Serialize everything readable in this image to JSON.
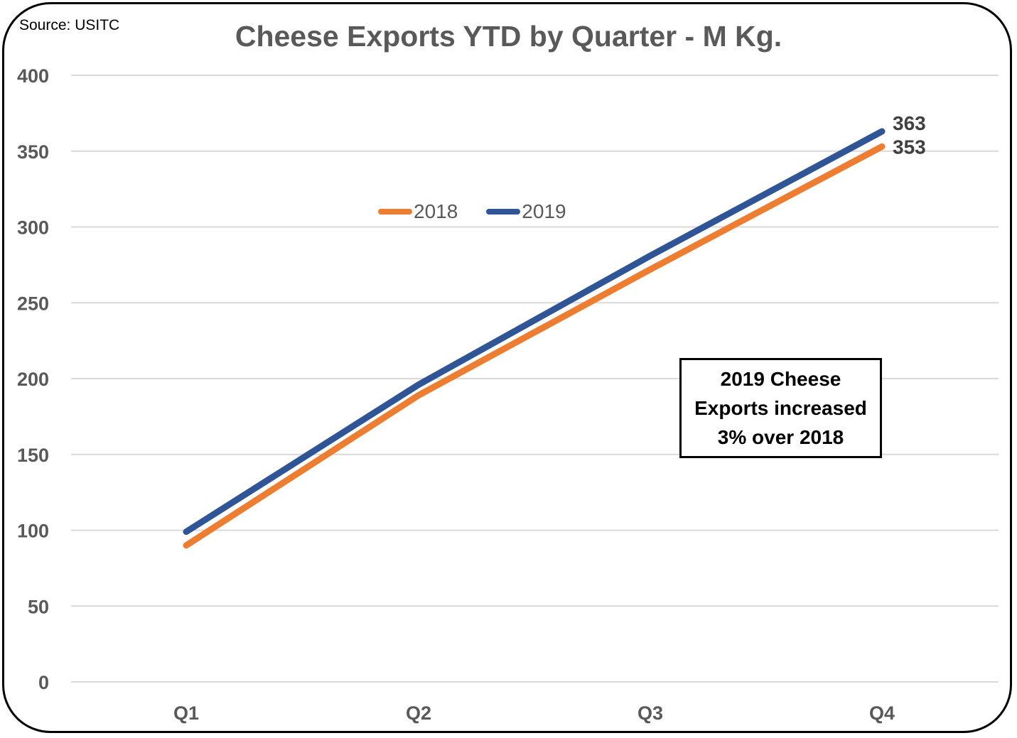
{
  "source_note": "Source: USITC",
  "colors": {
    "series_2018": "#ED7D31",
    "series_2019": "#2F5597",
    "grid": "#D9D9D9",
    "axis_text": "#595959"
  },
  "chart_data": {
    "type": "line",
    "title": "Cheese Exports YTD by Quarter - M Kg.",
    "xlabel": "",
    "ylabel": "",
    "categories": [
      "Q1",
      "Q2",
      "Q3",
      "Q4"
    ],
    "ylim": [
      0,
      400
    ],
    "yticks": [
      "0",
      "50",
      "100",
      "150",
      "200",
      "250",
      "300",
      "350",
      "400"
    ],
    "grid": true,
    "legend_position": "top-center",
    "series": [
      {
        "name": "2018",
        "values": [
          90,
          189,
          272,
          353
        ],
        "color": "#ED7D31"
      },
      {
        "name": "2019",
        "values": [
          99,
          196,
          281,
          363
        ],
        "color": "#2F5597"
      }
    ],
    "data_labels": [
      {
        "series": "2019",
        "category": "Q4",
        "text": "363"
      },
      {
        "series": "2018",
        "category": "Q4",
        "text": "353"
      }
    ],
    "annotation": "2019 Cheese Exports increased 3% over 2018"
  }
}
